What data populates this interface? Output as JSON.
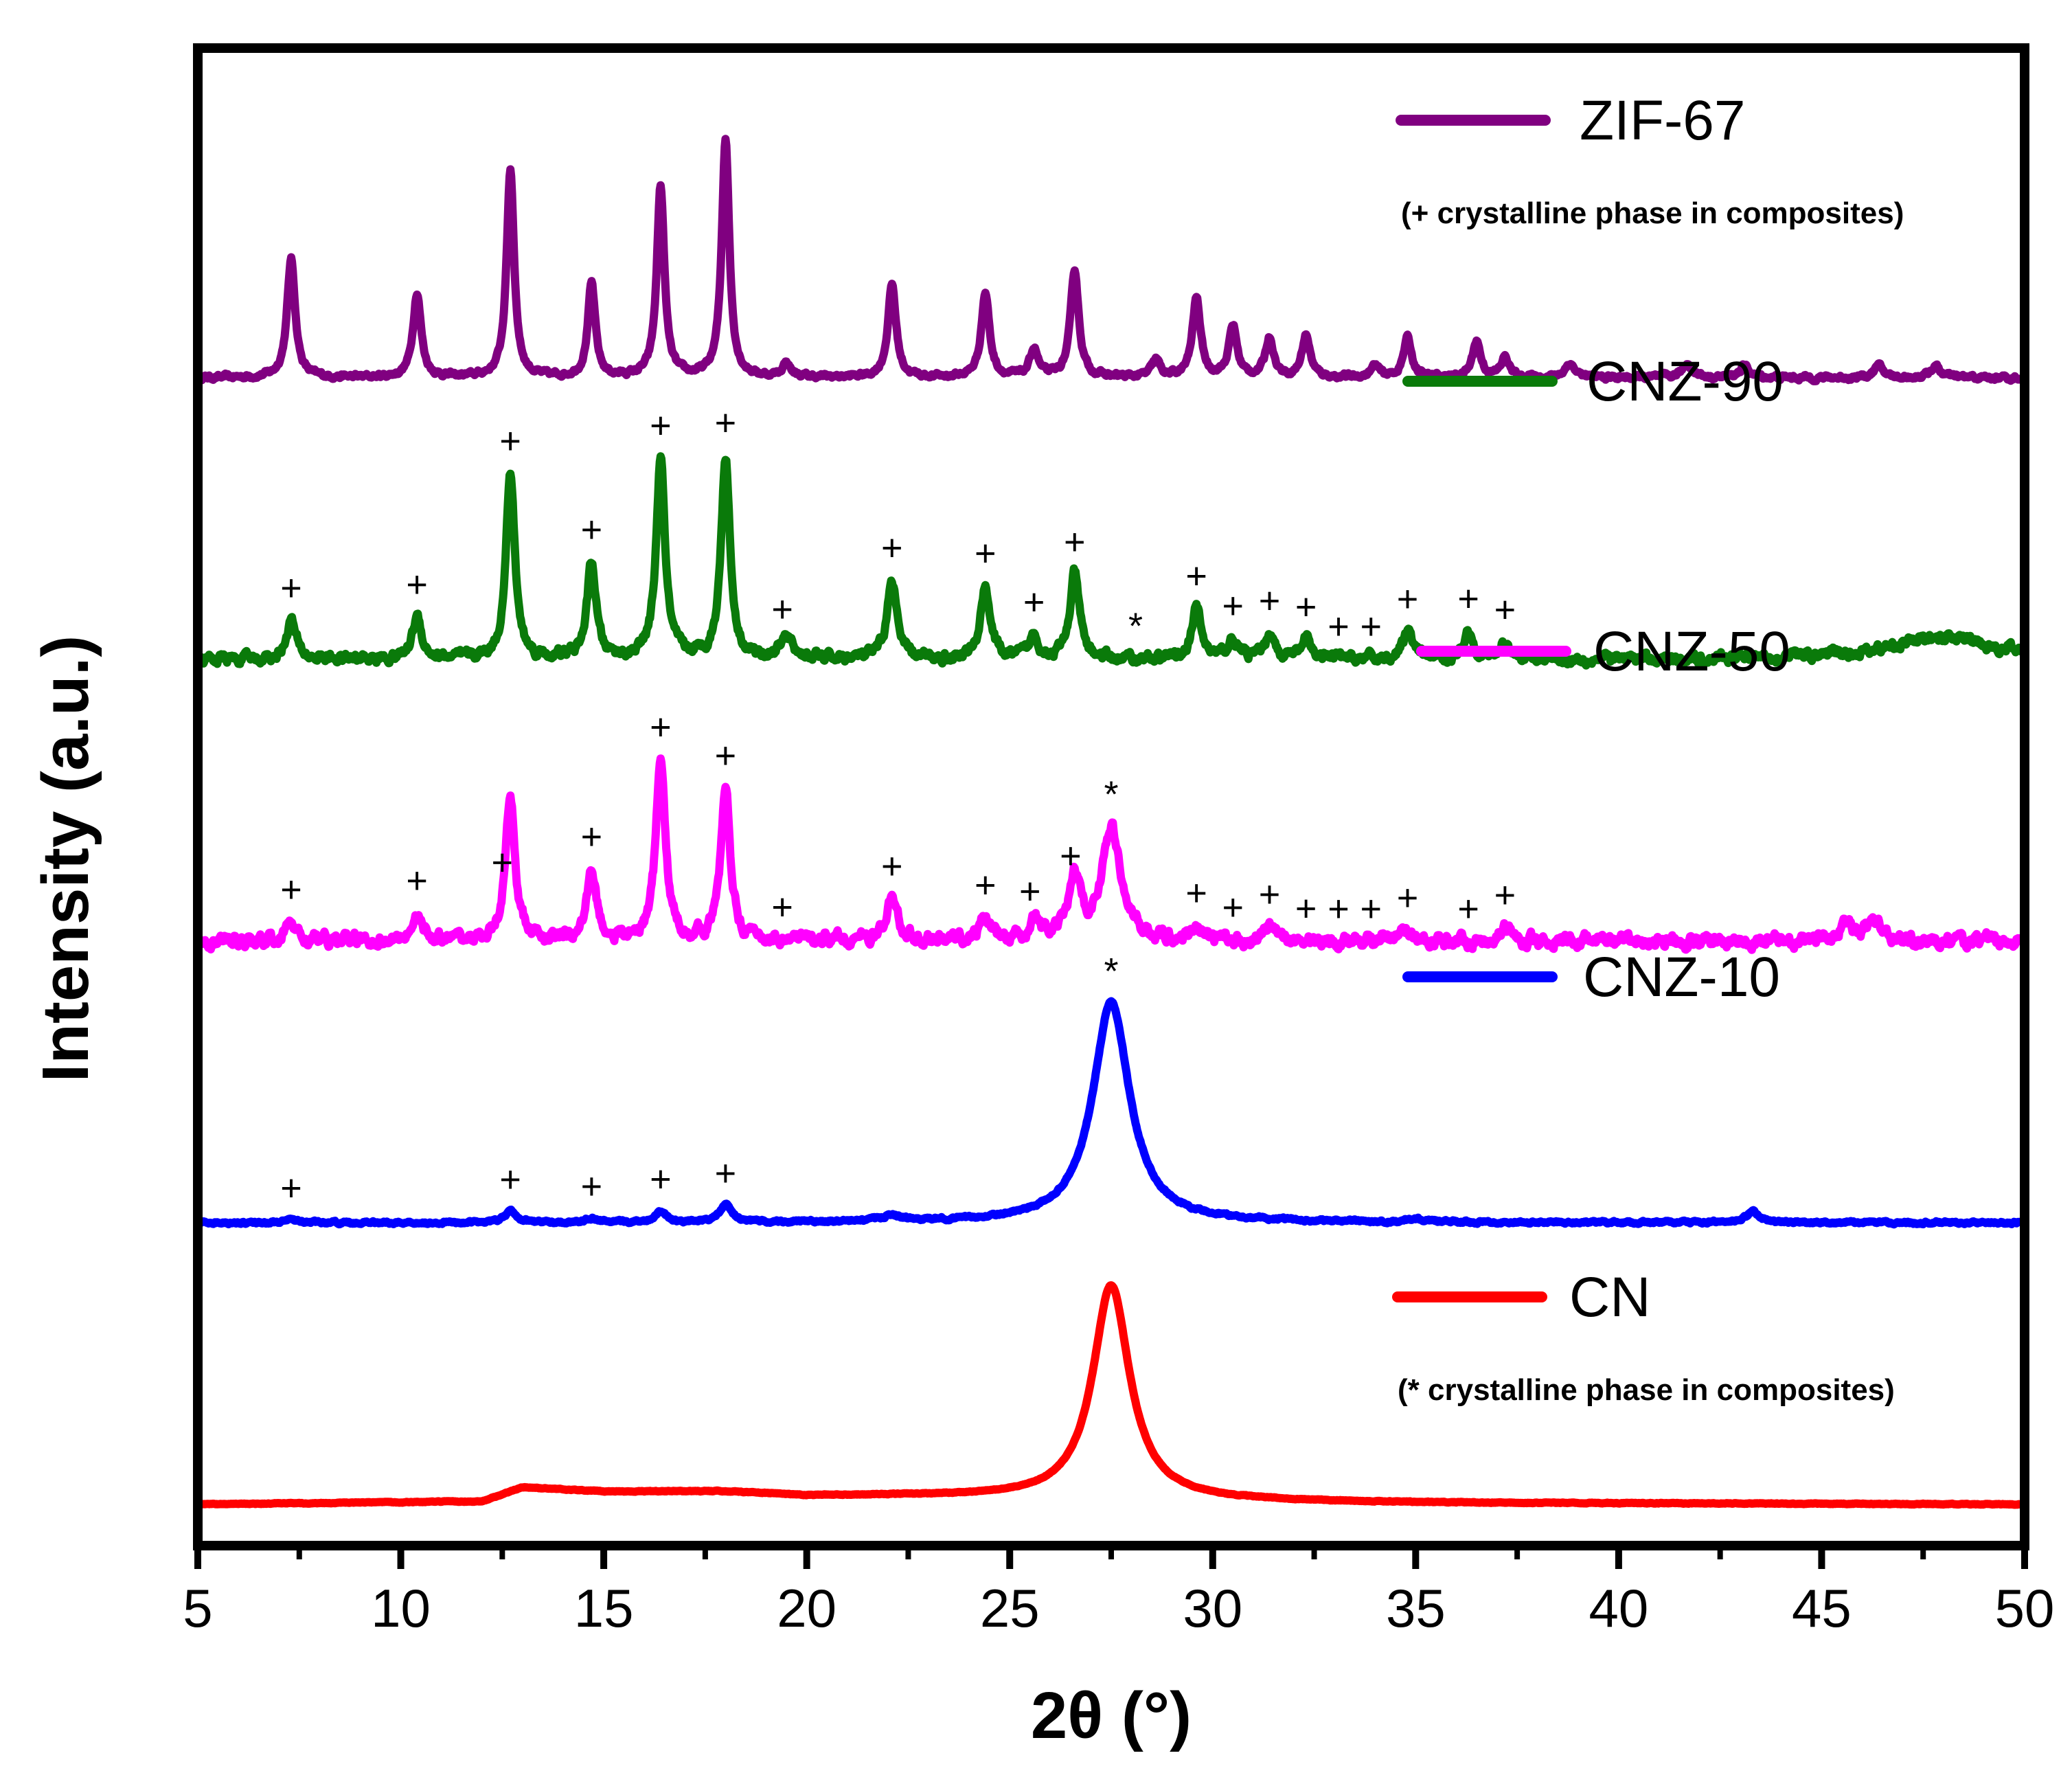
{
  "chart_data": {
    "type": "line",
    "title": "",
    "xlabel": "2θ (°)",
    "ylabel": "Intensity (a.u.)",
    "xlim": [
      5,
      50
    ],
    "xticks": [
      5,
      10,
      15,
      20,
      25,
      30,
      35,
      40,
      45,
      50
    ],
    "ylim": [
      0,
      5.2
    ],
    "grid": false,
    "legend": "right, beside each curve",
    "notes": [
      {
        "text": "(+ crystalline phase in composites)",
        "series": "ZIF-67"
      },
      {
        "text": "(* crystalline phase in composites)",
        "series": "CN"
      }
    ],
    "zif_peak_positions": [
      7.3,
      10.4,
      12.7,
      14.7,
      16.4,
      18.0,
      19.4,
      22.1,
      24.4,
      25.6,
      26.6,
      29.6,
      30.5,
      31.4,
      32.3,
      33.1,
      33.9,
      34.8,
      36.3,
      37.2
    ],
    "series": [
      {
        "name": "ZIF-67",
        "color": "#800080",
        "offset": 4.0,
        "noise": 0.02,
        "baseline": [
          [
            5,
            0
          ],
          [
            50,
            0
          ]
        ],
        "peaks": [
          [
            7.3,
            0.42,
            0.12
          ],
          [
            10.4,
            0.3,
            0.12
          ],
          [
            12.7,
            0.74,
            0.11
          ],
          [
            14.7,
            0.33,
            0.11
          ],
          [
            16.4,
            0.68,
            0.11
          ],
          [
            18.0,
            0.85,
            0.11
          ],
          [
            19.5,
            0.05,
            0.12
          ],
          [
            22.1,
            0.33,
            0.12
          ],
          [
            24.4,
            0.3,
            0.12
          ],
          [
            25.6,
            0.1,
            0.12
          ],
          [
            26.6,
            0.38,
            0.12
          ],
          [
            28.6,
            0.06,
            0.12
          ],
          [
            29.6,
            0.28,
            0.12
          ],
          [
            30.5,
            0.18,
            0.12
          ],
          [
            31.4,
            0.14,
            0.12
          ],
          [
            32.3,
            0.15,
            0.12
          ],
          [
            34.0,
            0.04,
            0.12
          ],
          [
            34.8,
            0.14,
            0.12
          ],
          [
            36.5,
            0.13,
            0.12
          ],
          [
            37.2,
            0.07,
            0.12
          ],
          [
            38.8,
            0.05,
            0.15
          ],
          [
            41.7,
            0.05,
            0.15
          ],
          [
            43.1,
            0.04,
            0.15
          ],
          [
            46.4,
            0.04,
            0.15
          ],
          [
            47.8,
            0.04,
            0.15
          ]
        ]
      },
      {
        "name": "CNZ-90",
        "color": "#0a7a0a",
        "offset": 3.0,
        "noise": 0.04,
        "baseline": [
          [
            5,
            0
          ],
          [
            50,
            0
          ]
        ],
        "peaks": [
          [
            7.3,
            0.14,
            0.14
          ],
          [
            10.4,
            0.15,
            0.14
          ],
          [
            12.7,
            0.66,
            0.13
          ],
          [
            14.7,
            0.34,
            0.13
          ],
          [
            16.4,
            0.71,
            0.13
          ],
          [
            18.0,
            0.72,
            0.13
          ],
          [
            19.5,
            0.07,
            0.2
          ],
          [
            22.1,
            0.28,
            0.14
          ],
          [
            24.4,
            0.26,
            0.14
          ],
          [
            25.6,
            0.08,
            0.14
          ],
          [
            26.6,
            0.3,
            0.14
          ],
          [
            29.6,
            0.18,
            0.14
          ],
          [
            30.5,
            0.07,
            0.14
          ],
          [
            31.4,
            0.09,
            0.14
          ],
          [
            32.3,
            0.07,
            0.14
          ],
          [
            34.8,
            0.1,
            0.14
          ],
          [
            36.3,
            0.1,
            0.14
          ],
          [
            37.2,
            0.06,
            0.14
          ],
          [
            48.0,
            0.08,
            1.5
          ]
        ]
      },
      {
        "name": "CNZ-50",
        "color": "#ff00ff",
        "offset": 2.0,
        "noise": 0.05,
        "baseline": [
          [
            5,
            0
          ],
          [
            50,
            0
          ]
        ],
        "peaks": [
          [
            7.3,
            0.07,
            0.14
          ],
          [
            10.4,
            0.1,
            0.14
          ],
          [
            12.7,
            0.5,
            0.14
          ],
          [
            14.7,
            0.25,
            0.14
          ],
          [
            16.4,
            0.64,
            0.14
          ],
          [
            18.0,
            0.54,
            0.14
          ],
          [
            22.1,
            0.15,
            0.16
          ],
          [
            24.4,
            0.08,
            0.16
          ],
          [
            25.6,
            0.07,
            0.16
          ],
          [
            26.6,
            0.22,
            0.16
          ],
          [
            27.5,
            0.4,
            0.28
          ],
          [
            29.6,
            0.05,
            0.16
          ],
          [
            31.4,
            0.05,
            0.16
          ],
          [
            34.8,
            0.04,
            0.16
          ],
          [
            37.2,
            0.05,
            0.16
          ],
          [
            45.6,
            0.06,
            0.2
          ],
          [
            46.3,
            0.07,
            0.2
          ]
        ]
      },
      {
        "name": "CNZ-10",
        "color": "#0000ff",
        "offset": 1.0,
        "noise": 0.01,
        "baseline": [
          [
            5,
            0
          ],
          [
            50,
            0
          ]
        ],
        "peaks": [
          [
            7.3,
            0.01,
            0.15
          ],
          [
            12.7,
            0.04,
            0.16
          ],
          [
            14.7,
            0.015,
            0.16
          ],
          [
            16.4,
            0.04,
            0.16
          ],
          [
            18.0,
            0.06,
            0.18
          ],
          [
            22.1,
            0.02,
            0.3
          ],
          [
            27.5,
            0.78,
            0.55
          ],
          [
            35.0,
            0.01,
            0.2
          ],
          [
            43.3,
            0.04,
            0.18
          ]
        ]
      },
      {
        "name": "CN",
        "color": "#ff0000",
        "offset": 0.0,
        "noise": 0.003,
        "baseline": [
          [
            5,
            0.0
          ],
          [
            12,
            0.01
          ],
          [
            13,
            0.06
          ],
          [
            15,
            0.045
          ],
          [
            18,
            0.045
          ],
          [
            20,
            0.03
          ],
          [
            22,
            0.03
          ],
          [
            25,
            0.025
          ],
          [
            30,
            0.012
          ],
          [
            35,
            0.005
          ],
          [
            50,
            0.0
          ]
        ],
        "peaks": [
          [
            27.5,
            0.76,
            0.55
          ]
        ]
      }
    ],
    "markers": [
      {
        "series": "CNZ-90",
        "symbol": "+",
        "x": [
          7.3,
          10.4,
          12.7,
          14.7,
          16.4,
          18.0,
          19.4,
          22.1,
          24.4,
          25.6,
          26.6,
          29.6,
          30.5,
          31.4,
          32.3,
          33.1,
          33.9,
          34.8,
          36.3,
          37.2
        ]
      },
      {
        "series": "CNZ-90",
        "symbol": "*",
        "x": [
          28.1
        ]
      },
      {
        "series": "CNZ-50",
        "symbol": "+",
        "x": [
          7.3,
          10.4,
          12.5,
          14.7,
          16.4,
          18.0,
          19.4,
          22.1,
          24.4,
          25.5,
          26.5,
          29.6,
          30.5,
          31.4,
          32.3,
          33.1,
          33.9,
          34.8,
          36.3,
          37.2
        ]
      },
      {
        "series": "CNZ-50",
        "symbol": "*",
        "x": [
          27.5
        ]
      },
      {
        "series": "CNZ-10",
        "symbol": "+",
        "x": [
          7.3,
          12.7,
          14.7,
          16.4,
          18.0
        ]
      },
      {
        "series": "CNZ-10",
        "symbol": "*",
        "x": [
          27.5
        ]
      }
    ]
  }
}
